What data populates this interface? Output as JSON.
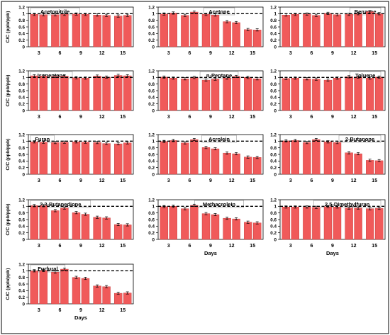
{
  "figure": {
    "y_axis_label": "C/C (ppb/ppb)",
    "x_axis_label": "Days",
    "reference_line": 1,
    "bar_color": "#f05a5a",
    "bar_edge_color": "#c03a3a"
  },
  "chart_data": [
    {
      "type": "bar",
      "title": "Acetonitrile",
      "categories": [
        "3",
        "6",
        "9",
        "12",
        "15"
      ],
      "ylim": [
        0,
        1.2
      ],
      "yticks": [
        "0",
        "0.2",
        "0.4",
        "0.6",
        "0.8",
        "1",
        "1.2"
      ],
      "bars": [
        [
          0.98,
          0.97
        ],
        [
          0.97,
          0.98
        ],
        [
          0.99,
          0.98
        ],
        [
          0.96,
          0.95
        ],
        [
          0.93,
          0.95
        ]
      ],
      "ylabel": "C/C (ppb/ppb)",
      "xlabel": ""
    },
    {
      "type": "bar",
      "title": "Acetone",
      "categories": [
        "3",
        "6",
        "9",
        "12",
        "15"
      ],
      "ylim": [
        0,
        1.2
      ],
      "yticks": [
        "0",
        "0.2",
        "0.4",
        "0.6",
        "0.8",
        "1",
        "1.2"
      ],
      "bars": [
        [
          0.99,
          1.02
        ],
        [
          0.95,
          1.05
        ],
        [
          0.98,
          0.96
        ],
        [
          0.76,
          0.73
        ],
        [
          0.52,
          0.51
        ]
      ],
      "ylabel": "",
      "xlabel": ""
    },
    {
      "type": "bar",
      "title": "Benzene",
      "categories": [
        "3",
        "6",
        "9",
        "12",
        "15"
      ],
      "ylim": [
        0,
        1.2
      ],
      "yticks": [
        "0",
        "0.2",
        "0.4",
        "0.6",
        "0.8",
        "1",
        "1.2"
      ],
      "bars": [
        [
          0.96,
          0.98
        ],
        [
          0.99,
          0.95
        ],
        [
          1.01,
          0.97
        ],
        [
          0.98,
          1.0
        ],
        [
          1.06,
          1.0
        ]
      ],
      "ylabel": "",
      "xlabel": ""
    },
    {
      "type": "bar",
      "title": "Isopentane",
      "categories": [
        "3",
        "6",
        "9",
        "12",
        "15"
      ],
      "ylim": [
        0,
        1.2
      ],
      "yticks": [
        "0",
        "0.2",
        "0.4",
        "0.6",
        "0.8",
        "1",
        "1.2"
      ],
      "bars": [
        [
          1.05,
          1.04
        ],
        [
          1.03,
          1.04
        ],
        [
          0.99,
          0.98
        ],
        [
          1.04,
          1.01
        ],
        [
          1.06,
          1.05
        ]
      ],
      "ylabel": "C/C (ppb/ppb)",
      "xlabel": ""
    },
    {
      "type": "bar",
      "title": "n-Pentane",
      "categories": [
        "3",
        "6",
        "9",
        "12",
        "15"
      ],
      "ylim": [
        0,
        1.2
      ],
      "yticks": [
        "0",
        "0.2",
        "0.4",
        "0.6",
        "0.8",
        "1",
        "1.2"
      ],
      "bars": [
        [
          1.01,
          0.98
        ],
        [
          0.96,
          1.0
        ],
        [
          0.92,
          0.95
        ],
        [
          0.98,
          1.03
        ],
        [
          1.0,
          0.96
        ]
      ],
      "ylabel": "",
      "xlabel": ""
    },
    {
      "type": "bar",
      "title": "Toluene",
      "categories": [
        "3",
        "6",
        "9",
        "12",
        "15"
      ],
      "ylim": [
        0,
        1.2
      ],
      "yticks": [
        "0",
        "0.2",
        "0.4",
        "0.6",
        "0.8",
        "1",
        "1.2"
      ],
      "bars": [
        [
          0.97,
          0.98
        ],
        [
          0.96,
          0.95
        ],
        [
          0.92,
          0.98
        ],
        [
          1.02,
          1.01
        ],
        [
          0.98,
          1.01
        ]
      ],
      "ylabel": "",
      "xlabel": ""
    },
    {
      "type": "bar",
      "title": "Furan",
      "categories": [
        "3",
        "6",
        "9",
        "12",
        "15"
      ],
      "ylim": [
        0,
        1.2
      ],
      "yticks": [
        "0",
        "0.2",
        "0.4",
        "0.6",
        "0.8",
        "1",
        "1.2"
      ],
      "bars": [
        [
          0.98,
          0.97
        ],
        [
          0.96,
          0.97
        ],
        [
          0.98,
          0.97
        ],
        [
          0.96,
          0.93
        ],
        [
          0.92,
          0.95
        ]
      ],
      "ylabel": "C/C (ppb/ppb)",
      "xlabel": ""
    },
    {
      "type": "bar",
      "title": "Acrolein",
      "categories": [
        "3",
        "6",
        "9",
        "12",
        "15"
      ],
      "ylim": [
        0,
        1.2
      ],
      "yticks": [
        "0",
        "0.2",
        "0.4",
        "0.6",
        "0.8",
        "1",
        "1.2"
      ],
      "bars": [
        [
          0.99,
          1.02
        ],
        [
          0.95,
          1.05
        ],
        [
          0.81,
          0.77
        ],
        [
          0.64,
          0.62
        ],
        [
          0.52,
          0.51
        ]
      ],
      "ylabel": "",
      "xlabel": ""
    },
    {
      "type": "bar",
      "title": "2-Butanone",
      "categories": [
        "3",
        "6",
        "9",
        "12",
        "15"
      ],
      "ylim": [
        0,
        1.2
      ],
      "yticks": [
        "0",
        "0.2",
        "0.4",
        "0.6",
        "0.8",
        "1",
        "1.2"
      ],
      "bars": [
        [
          1.01,
          1.02
        ],
        [
          0.96,
          1.05
        ],
        [
          0.98,
          0.96
        ],
        [
          0.65,
          0.62
        ],
        [
          0.42,
          0.41
        ]
      ],
      "ylabel": "",
      "xlabel": ""
    },
    {
      "type": "bar",
      "title": "2,3-Butanedione",
      "categories": [
        "3",
        "6",
        "9",
        "12",
        "15"
      ],
      "ylim": [
        0,
        1.2
      ],
      "yticks": [
        "0",
        "0.2",
        "0.4",
        "0.6",
        "0.8",
        "1",
        "1.2"
      ],
      "bars": [
        [
          1.02,
          1.02
        ],
        [
          0.87,
          0.95
        ],
        [
          0.81,
          0.76
        ],
        [
          0.67,
          0.65
        ],
        [
          0.45,
          0.44
        ]
      ],
      "ylabel": "C/C (ppb/ppb)",
      "xlabel": ""
    },
    {
      "type": "bar",
      "title": "Methacrolein",
      "categories": [
        "3",
        "6",
        "9",
        "12",
        "15"
      ],
      "ylim": [
        0,
        1.2
      ],
      "yticks": [
        "0",
        "0.2",
        "0.4",
        "0.6",
        "0.8",
        "1",
        "1.2"
      ],
      "bars": [
        [
          0.99,
          1.0
        ],
        [
          0.93,
          1.03
        ],
        [
          0.78,
          0.75
        ],
        [
          0.64,
          0.62
        ],
        [
          0.52,
          0.5
        ]
      ],
      "ylabel": "",
      "xlabel": "Days"
    },
    {
      "type": "bar",
      "title": "2,5-Dimethylfuran",
      "categories": [
        "3",
        "6",
        "9",
        "12",
        "15"
      ],
      "ylim": [
        0,
        1.2
      ],
      "yticks": [
        "0",
        "0.2",
        "0.4",
        "0.6",
        "0.8",
        "1",
        "1.2"
      ],
      "bars": [
        [
          0.98,
          0.98
        ],
        [
          0.98,
          0.97
        ],
        [
          0.99,
          0.98
        ],
        [
          0.95,
          0.95
        ],
        [
          0.93,
          0.94
        ]
      ],
      "ylabel": "",
      "xlabel": "Days"
    },
    {
      "type": "bar",
      "title": "Furfural",
      "categories": [
        "3",
        "6",
        "9",
        "12",
        "15"
      ],
      "ylim": [
        0,
        1.2
      ],
      "yticks": [
        "0",
        "0.2",
        "0.4",
        "0.6",
        "0.8",
        "1",
        "1.2"
      ],
      "bars": [
        [
          1.0,
          1.01
        ],
        [
          0.96,
          1.05
        ],
        [
          0.8,
          0.77
        ],
        [
          0.54,
          0.52
        ],
        [
          0.32,
          0.33
        ]
      ],
      "ylabel": "C/C (ppb/ppb)",
      "xlabel": "Days"
    }
  ]
}
